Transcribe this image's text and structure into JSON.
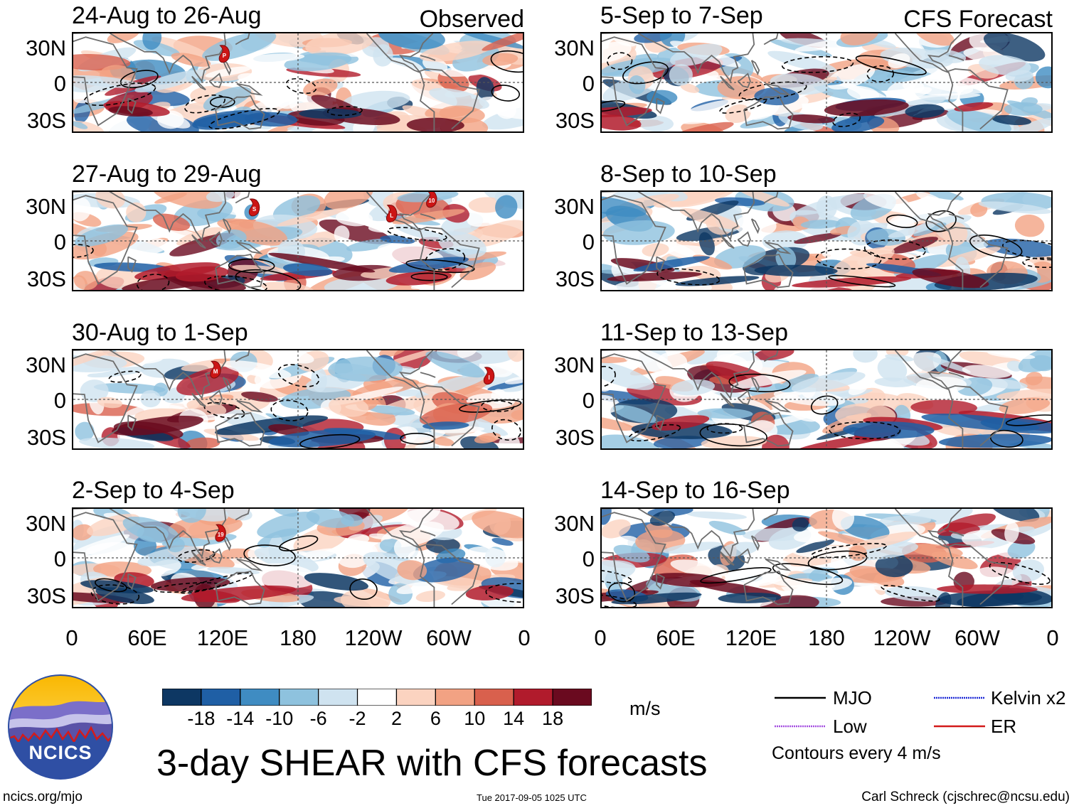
{
  "figure": {
    "title": "3-day SHEAR with CFS forecasts",
    "units": "m/s",
    "contour_note": "Contours every 4 m/s",
    "website": "ncics.org/mjo",
    "timestamp": "Tue 2017-09-05 1025 UTC",
    "author": "Carl Schreck (cjschrec@ncsu.edu)",
    "logo_text": "NCICS"
  },
  "columns": [
    {
      "tag": "Observed"
    },
    {
      "tag": "CFS Forecast"
    }
  ],
  "panels": [
    {
      "title": "24-Aug to 26-Aug",
      "storms": [
        {
          "label": "P",
          "lon": 121,
          "lat": 22
        }
      ]
    },
    {
      "title": "27-Aug to 29-Aug",
      "storms": [
        {
          "label": "S",
          "lon": 145,
          "lat": 26
        },
        {
          "label": "L",
          "lon": 255,
          "lat": 21
        },
        {
          "label": "10",
          "lon": 287,
          "lat": 33
        }
      ]
    },
    {
      "title": "30-Aug to 1-Sep",
      "storms": [
        {
          "label": "M",
          "lon": 114,
          "lat": 23
        },
        {
          "label": "I",
          "lon": 333,
          "lat": 18
        }
      ]
    },
    {
      "title": "2-Sep to 4-Sep",
      "storms": [
        {
          "label": "19",
          "lon": 118,
          "lat": 19
        }
      ]
    },
    {
      "title": "5-Sep to 7-Sep",
      "storms": []
    },
    {
      "title": "8-Sep to 10-Sep",
      "storms": []
    },
    {
      "title": "11-Sep to 13-Sep",
      "storms": []
    },
    {
      "title": "14-Sep to 16-Sep",
      "storms": []
    }
  ],
  "latitude_labels": [
    "30N",
    "0",
    "30S"
  ],
  "longitude_labels": [
    "0",
    "60E",
    "120E",
    "180",
    "120W",
    "60W",
    "0"
  ],
  "colorbar": {
    "labels": [
      "-18",
      "-14",
      "-10",
      "-6",
      "-2",
      "2",
      "6",
      "10",
      "14",
      "18"
    ],
    "colors": [
      "#0d3763",
      "#1f5fa5",
      "#3f8cc2",
      "#8ec2de",
      "#cfe3f0",
      "#ffffff",
      "#fbd3c0",
      "#f2a283",
      "#d9604d",
      "#b11b2c",
      "#6a0a1f"
    ]
  },
  "legend": [
    {
      "label": "MJO",
      "color": "#000000"
    },
    {
      "label": "Kelvin x2",
      "color": "#1f2ad6"
    },
    {
      "label": "Low",
      "color": "#a44fe0"
    },
    {
      "label": "ER",
      "color": "#d31a1a"
    }
  ]
}
